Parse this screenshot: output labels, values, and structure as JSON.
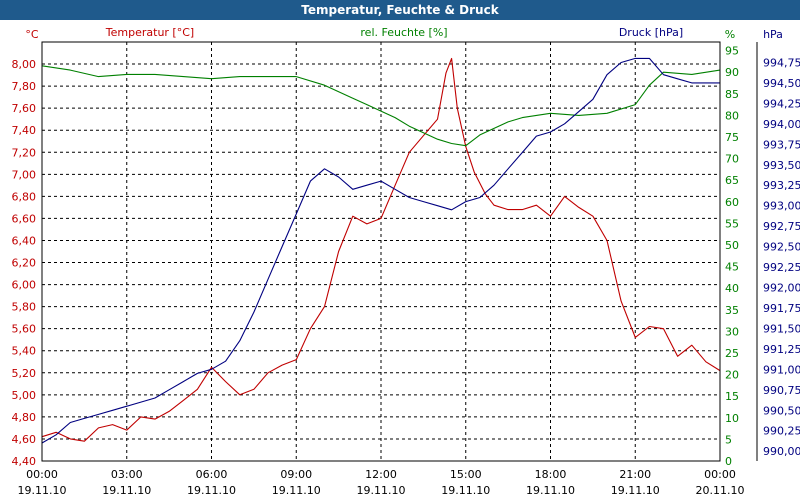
{
  "chart_data": {
    "type": "line",
    "title": "Temperatur, Feuchte & Druck",
    "x_ticks": [
      {
        "time": "00:00",
        "date": "19.11.10"
      },
      {
        "time": "03:00",
        "date": "19.11.10"
      },
      {
        "time": "06:00",
        "date": "19.11.10"
      },
      {
        "time": "09:00",
        "date": "19.11.10"
      },
      {
        "time": "12:00",
        "date": "19.11.10"
      },
      {
        "time": "15:00",
        "date": "19.11.10"
      },
      {
        "time": "18:00",
        "date": "19.11.10"
      },
      {
        "time": "21:00",
        "date": "19.11.10"
      },
      {
        "time": "00:00",
        "date": "20.11.10"
      }
    ],
    "xlim_hours": [
      0,
      24
    ],
    "axes": {
      "temperature": {
        "label": "Temperatur [°C]",
        "unit": "°C",
        "color": "#c00000",
        "ylim": [
          4.4,
          8.2
        ],
        "ticks": [
          "4,40",
          "4,60",
          "4,80",
          "5,00",
          "5,20",
          "5,40",
          "5,60",
          "5,80",
          "6,00",
          "6,20",
          "6,40",
          "6,60",
          "6,80",
          "7,00",
          "7,20",
          "7,40",
          "7,60",
          "7,80",
          "8,00"
        ]
      },
      "humidity": {
        "label": "rel. Feuchte [%]",
        "unit": "%",
        "color": "#008000",
        "ylim": [
          0,
          97
        ],
        "ticks": [
          "0",
          "5",
          "10",
          "15",
          "20",
          "25",
          "30",
          "35",
          "40",
          "45",
          "50",
          "55",
          "60",
          "65",
          "70",
          "75",
          "80",
          "85",
          "90",
          "95"
        ]
      },
      "pressure": {
        "label": "Druck [hPa]",
        "unit": "hPa",
        "color": "#000080",
        "ylim": [
          989.88,
          995.0
        ],
        "ticks": [
          "990,00",
          "990,25",
          "990,50",
          "990,75",
          "991,00",
          "991,25",
          "991,50",
          "991,75",
          "992,00",
          "992,25",
          "992,50",
          "992,75",
          "993,00",
          "993,25",
          "993,50",
          "993,75",
          "994,00",
          "994,25",
          "994,50",
          "994,75"
        ]
      }
    },
    "series": [
      {
        "name": "Temperatur [°C]",
        "color": "#c00000",
        "x": [
          0,
          0.5,
          1,
          1.5,
          2,
          2.5,
          3,
          3.5,
          4,
          4.5,
          5,
          5.5,
          6,
          6.5,
          7,
          7.5,
          8,
          8.5,
          9,
          9.5,
          10,
          10.5,
          11,
          11.5,
          12,
          12.5,
          13,
          13.5,
          14,
          14.3,
          14.5,
          14.7,
          15,
          15.3,
          15.7,
          16,
          16.5,
          17,
          17.5,
          18,
          18.5,
          19,
          19.5,
          20,
          20.5,
          21,
          21.5,
          22,
          22.5,
          23,
          23.5,
          24
        ],
        "values": [
          4.62,
          4.66,
          4.6,
          4.58,
          4.7,
          4.73,
          4.68,
          4.8,
          4.78,
          4.85,
          4.95,
          5.05,
          5.25,
          5.12,
          5.0,
          5.05,
          5.2,
          5.27,
          5.32,
          5.6,
          5.8,
          6.3,
          6.62,
          6.55,
          6.6,
          6.9,
          7.2,
          7.35,
          7.5,
          7.92,
          8.05,
          7.6,
          7.25,
          7.02,
          6.82,
          6.72,
          6.68,
          6.68,
          6.72,
          6.62,
          6.8,
          6.7,
          6.62,
          6.4,
          5.85,
          5.52,
          5.62,
          5.6,
          5.35,
          5.45,
          5.3,
          5.22
        ]
      },
      {
        "name": "rel. Feuchte [%]",
        "color": "#008000",
        "x": [
          0,
          1,
          2,
          3,
          4,
          5,
          6,
          7,
          8,
          9,
          10,
          11,
          11.5,
          12,
          12.5,
          13,
          13.5,
          14,
          14.5,
          15,
          15.5,
          16,
          16.5,
          17,
          18,
          19,
          20,
          21,
          21.5,
          22,
          23,
          24
        ],
        "values": [
          91.5,
          90.5,
          89,
          89.5,
          89.5,
          89,
          88.5,
          89,
          89,
          89,
          87,
          84,
          82.5,
          81,
          79.5,
          77.5,
          76,
          74.5,
          73.5,
          73,
          75.5,
          77,
          78.5,
          79.5,
          80.5,
          80,
          80.5,
          82.5,
          87,
          90,
          89.5,
          90.5
        ]
      },
      {
        "name": "Druck [hPa]",
        "color": "#000080",
        "x": [
          0,
          0.5,
          1,
          1.5,
          2,
          2.5,
          3,
          3.5,
          4,
          4.5,
          5,
          5.5,
          6,
          6.5,
          7,
          7.5,
          8,
          8.5,
          9,
          9.5,
          10,
          10.5,
          11,
          11.5,
          12,
          12.5,
          13,
          13.5,
          14,
          14.5,
          15,
          15.5,
          16,
          16.5,
          17,
          17.5,
          18,
          18.5,
          19,
          19.5,
          20,
          20.5,
          21,
          21.5,
          22,
          22.5,
          23,
          23.5,
          24
        ],
        "values": [
          990.1,
          990.2,
          990.35,
          990.4,
          990.45,
          990.5,
          990.55,
          990.6,
          990.65,
          990.75,
          990.85,
          990.95,
          991.0,
          991.1,
          991.35,
          991.7,
          992.1,
          992.5,
          992.9,
          993.3,
          993.45,
          993.35,
          993.2,
          993.25,
          993.3,
          993.2,
          993.1,
          993.05,
          993.0,
          992.95,
          993.05,
          993.1,
          993.25,
          993.45,
          993.65,
          993.85,
          993.9,
          994.0,
          994.15,
          994.3,
          994.6,
          994.75,
          994.8,
          994.8,
          994.6,
          994.55,
          994.5,
          994.5,
          994.5
        ]
      }
    ]
  }
}
